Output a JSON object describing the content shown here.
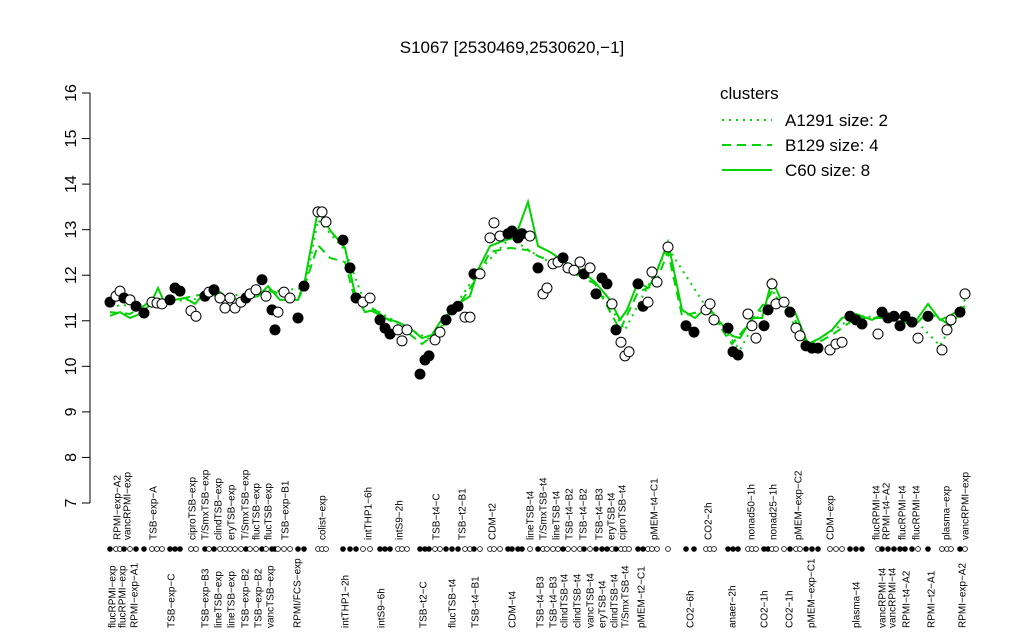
{
  "chart_data": {
    "type": "scatter",
    "title": "S1067 [2530469,2530620,−1]",
    "ylim": [
      7,
      16
    ],
    "yticks": [
      7,
      8,
      9,
      10,
      11,
      12,
      13,
      14,
      15,
      16
    ],
    "xlim": [
      0,
      174
    ],
    "xticks_top": [
      {
        "value": 3.4,
        "label": "RPMI−exp−A2"
      },
      {
        "value": 5.4,
        "label": "vancRPMI−exp"
      },
      {
        "value": 10.6,
        "label": "TSB−exp−A"
      },
      {
        "value": 18.4,
        "label": "ciproTSB−exp"
      },
      {
        "value": 21,
        "label": "T/SmxTSB−exp"
      },
      {
        "value": 23.6,
        "label": "clindTSB−exp"
      },
      {
        "value": 26.2,
        "label": "eryTSB−exp"
      },
      {
        "value": 29,
        "label": "T/SmxTSB−exp"
      },
      {
        "value": 31.2,
        "label": "flucTSB−exp"
      },
      {
        "value": 33.6,
        "label": "flucTSB−exp"
      },
      {
        "value": 37,
        "label": "TSB−exp−B1"
      },
      {
        "value": 44.4,
        "label": "colist−exp"
      },
      {
        "value": 53.6,
        "label": "intTHP1−6h"
      },
      {
        "value": 59.8,
        "label": "intS9−2h"
      },
      {
        "value": 67.2,
        "label": "TSB−t4−C"
      },
      {
        "value": 72.4,
        "label": "TSB−t2−B1"
      },
      {
        "value": 78.4,
        "label": "CDM−t2"
      },
      {
        "value": 86,
        "label": "lineTSB−t4"
      },
      {
        "value": 88.6,
        "label": "T/SmxTSB−t4"
      },
      {
        "value": 91.2,
        "label": "lineTSB−t4"
      },
      {
        "value": 93.8,
        "label": "TSB−t4−B2"
      },
      {
        "value": 96.6,
        "label": "TSB−t4−B2"
      },
      {
        "value": 99.8,
        "label": "TSB−t4−B3"
      },
      {
        "value": 102.2,
        "label": "eryTSB−t4"
      },
      {
        "value": 104.4,
        "label": "ciproTSB−t4"
      },
      {
        "value": 110.8,
        "label": "pMEM−t4−C1"
      },
      {
        "value": 121.6,
        "label": "CO2−2h"
      },
      {
        "value": 130.2,
        "label": "nonad50−1h"
      },
      {
        "value": 134.6,
        "label": "nonad25−1h"
      },
      {
        "value": 139.6,
        "label": "pMEM−exp−C2"
      },
      {
        "value": 146,
        "label": "CDM−exp"
      },
      {
        "value": 155.2,
        "label": "flucRPMI−t4"
      },
      {
        "value": 157.2,
        "label": "RPMI−t4−A2"
      },
      {
        "value": 160.4,
        "label": "flucRPMI−t4"
      },
      {
        "value": 163.2,
        "label": "flucRPMI−t4"
      },
      {
        "value": 169.2,
        "label": "plasma−exp"
      },
      {
        "value": 173,
        "label": "vancRPMI−exp"
      }
    ],
    "xticks_bottom": [
      {
        "value": 2.4,
        "label": "flucRPMI−exp"
      },
      {
        "value": 4.4,
        "label": "flucRPMI−exp"
      },
      {
        "value": 6.8,
        "label": "RPMI−exp−A1"
      },
      {
        "value": 14.2,
        "label": "TSB−exp−C"
      },
      {
        "value": 21,
        "label": "TSB−exp−B3"
      },
      {
        "value": 23.6,
        "label": "lineTSB−exp"
      },
      {
        "value": 26.2,
        "label": "lineTSB−exp"
      },
      {
        "value": 29,
        "label": "TSB−exp−B2"
      },
      {
        "value": 31.6,
        "label": "TSB−exp−B2"
      },
      {
        "value": 34,
        "label": "vancTSB−exp"
      },
      {
        "value": 39.4,
        "label": "RPMI/FCS−exp"
      },
      {
        "value": 49,
        "label": "intTHP1−2h"
      },
      {
        "value": 56.2,
        "label": "intS9−6h"
      },
      {
        "value": 64.6,
        "label": "TSB−t2−C"
      },
      {
        "value": 70.4,
        "label": "flucTSB−t4"
      },
      {
        "value": 75,
        "label": "TSB−t4−B1"
      },
      {
        "value": 82.4,
        "label": "CDM−t4"
      },
      {
        "value": 88,
        "label": "TSB−t4−B3"
      },
      {
        "value": 90.6,
        "label": "TSB−t4−B3"
      },
      {
        "value": 92.8,
        "label": "clindTSB−t4"
      },
      {
        "value": 95.4,
        "label": "clindTSB−t4"
      },
      {
        "value": 98,
        "label": "vancTSB−t4"
      },
      {
        "value": 100.4,
        "label": "eryTSB−t4"
      },
      {
        "value": 102.8,
        "label": "clindTSB−t4"
      },
      {
        "value": 105,
        "label": "T/SmxTSB−t4"
      },
      {
        "value": 108.2,
        "label": "pMEM−t2−C1"
      },
      {
        "value": 118,
        "label": "CO2−6h"
      },
      {
        "value": 126.4,
        "label": "anaer−2h"
      },
      {
        "value": 132.8,
        "label": "CO2−1h"
      },
      {
        "value": 137.8,
        "label": "CO2−1h"
      },
      {
        "value": 142.2,
        "label": "pMEM−exp−C1"
      },
      {
        "value": 151.2,
        "label": "plasma−t4"
      },
      {
        "value": 156.4,
        "label": "vancRPMI−t4"
      },
      {
        "value": 158.4,
        "label": "vancRPMI−t4"
      },
      {
        "value": 161.2,
        "label": "RPMI−t4−A2"
      },
      {
        "value": 166.2,
        "label": "RPMI−t2−A1"
      },
      {
        "value": 172.4,
        "label": "RPMI−exp−A2"
      }
    ],
    "points": {
      "x": [
        2,
        3.2,
        4,
        4.8,
        6,
        7.2,
        8.8,
        10.4,
        11.4,
        12.4,
        14,
        15,
        16,
        18.2,
        19.2,
        21,
        21.8,
        22.8,
        24,
        25,
        26,
        27,
        28.2,
        29.2,
        30,
        31.2,
        32.4,
        33.2,
        34.4,
        35,
        35.6,
        36.8,
        38,
        39.6,
        40.8,
        43.6,
        44.4,
        45.2,
        48.6,
        50,
        51.2,
        52.6,
        54,
        56,
        57,
        58,
        59.6,
        60.4,
        61.4,
        64,
        65,
        65.8,
        67,
        68,
        69.2,
        70.4,
        71.6,
        73,
        74,
        74.8,
        76,
        78,
        78.8,
        80,
        81.6,
        82.4,
        83.6,
        84.4,
        86,
        87.6,
        88.6,
        89.4,
        90.6,
        91.6,
        92.6,
        93.6,
        94.8,
        96,
        96.8,
        98,
        99.2,
        100.4,
        101.4,
        102.4,
        103.2,
        104.2,
        105,
        105.8,
        107.6,
        108.6,
        109.6,
        110.4,
        111.4,
        113.6,
        117.2,
        118.8,
        121.2,
        122,
        122.8,
        125.6,
        126.6,
        127.6,
        129.6,
        130.4,
        131.2,
        132.8,
        133.6,
        134.4,
        135.2,
        136.8,
        138,
        139.2,
        140,
        141.2,
        142.4,
        143.6,
        146,
        147.2,
        148.4,
        150,
        151.2,
        152.4,
        155.6,
        156.4,
        157.6,
        158.8,
        160,
        161,
        162.4,
        163.6,
        165.6,
        168.4,
        169.4,
        170.2,
        172,
        173
      ],
      "values": [
        11.41,
        11.54,
        11.65,
        11.5,
        11.46,
        11.32,
        11.17,
        11.41,
        11.39,
        11.37,
        11.46,
        11.72,
        11.65,
        11.22,
        11.1,
        11.54,
        11.63,
        11.68,
        11.5,
        11.28,
        11.5,
        11.28,
        11.41,
        11.5,
        11.59,
        11.68,
        11.9,
        11.54,
        11.24,
        10.8,
        11.19,
        11.63,
        11.5,
        11.06,
        11.76,
        13.39,
        13.39,
        13.17,
        12.77,
        12.16,
        11.5,
        11.41,
        11.5,
        11.02,
        10.84,
        10.71,
        10.8,
        10.56,
        10.8,
        9.83,
        10.14,
        10.23,
        10.58,
        10.75,
        11.02,
        11.24,
        11.32,
        11.08,
        11.08,
        12.03,
        12.03,
        12.82,
        13.15,
        12.86,
        12.91,
        12.97,
        12.82,
        12.91,
        12.86,
        12.16,
        11.59,
        11.72,
        12.25,
        12.29,
        12.38,
        12.16,
        12.11,
        12.29,
        12.03,
        12.16,
        11.59,
        11.94,
        11.81,
        11.37,
        10.8,
        10.53,
        10.23,
        10.32,
        11.81,
        11.32,
        11.41,
        12.07,
        11.85,
        12.62,
        10.89,
        10.75,
        11.24,
        11.37,
        11.02,
        10.84,
        10.32,
        10.25,
        11.15,
        10.89,
        10.62,
        10.89,
        11.24,
        11.81,
        11.37,
        11.41,
        11.19,
        10.84,
        10.67,
        10.45,
        10.4,
        10.4,
        10.36,
        10.49,
        10.53,
        11.1,
        11.02,
        10.93,
        10.71,
        11.19,
        11.06,
        11.1,
        10.89,
        11.1,
        10.97,
        10.62,
        11.1,
        10.36,
        10.8,
        11.02,
        11.19,
        11.59
      ],
      "filled": [
        true,
        false,
        false,
        true,
        false,
        true,
        true,
        false,
        false,
        false,
        true,
        true,
        true,
        false,
        false,
        true,
        false,
        true,
        false,
        false,
        false,
        false,
        false,
        true,
        false,
        false,
        true,
        false,
        true,
        true,
        false,
        false,
        false,
        true,
        true,
        false,
        false,
        false,
        true,
        true,
        true,
        false,
        false,
        true,
        true,
        true,
        false,
        false,
        false,
        true,
        true,
        true,
        false,
        false,
        true,
        true,
        true,
        false,
        false,
        true,
        false,
        false,
        false,
        false,
        true,
        true,
        true,
        true,
        false,
        true,
        false,
        false,
        false,
        false,
        true,
        false,
        false,
        false,
        true,
        false,
        true,
        true,
        true,
        false,
        true,
        false,
        false,
        false,
        true,
        true,
        false,
        false,
        false,
        false,
        true,
        true,
        false,
        false,
        false,
        true,
        true,
        true,
        false,
        false,
        false,
        true,
        true,
        false,
        false,
        false,
        true,
        false,
        false,
        true,
        true,
        true,
        false,
        false,
        false,
        true,
        true,
        true,
        false,
        true,
        true,
        true,
        true,
        true,
        true,
        false,
        true,
        false,
        false,
        false,
        true,
        false
      ]
    },
    "legend_title": "clusters",
    "legend": "topright",
    "series": [
      {
        "name": "A1291 size: 2",
        "color": "#00d400",
        "dash": "dotted",
        "x": [
          2,
          10,
          21,
          33.6,
          41,
          43.6,
          49,
          53,
          62,
          66.4,
          75.6,
          82,
          87.6,
          99,
          105,
          113.6,
          121.6,
          128,
          134.4,
          141.6,
          151.2,
          163,
          168,
          173
        ],
        "values": [
          11.32,
          11.37,
          11.5,
          11.63,
          11.72,
          13.21,
          12.55,
          11.37,
          10.8,
          10.58,
          12.07,
          12.82,
          12.42,
          11.81,
          10.8,
          12.6,
          11.24,
          10.36,
          11.68,
          10.45,
          11.11,
          11.02,
          10.45,
          11.46
        ]
      },
      {
        "name": "B129 size: 4",
        "color": "#00d400",
        "dash": "dashed",
        "x": [
          2,
          6,
          10,
          15,
          21,
          28,
          33.6,
          39.6,
          41,
          43.6,
          46,
          49,
          51,
          54,
          59.6,
          64.4,
          68,
          71.6,
          75.6,
          78,
          82,
          85.6,
          87.6,
          93,
          99,
          104,
          107.6,
          111,
          113.6,
          116.4,
          121.6,
          126.4,
          130.4,
          134.4,
          139,
          141.6,
          146.4,
          151.2,
          156.8,
          163,
          165.6,
          170,
          173
        ],
        "values": [
          11.19,
          11.15,
          11.41,
          11.46,
          11.59,
          11.46,
          11.68,
          11.46,
          11.79,
          12.66,
          12.38,
          12.29,
          11.46,
          11.24,
          10.91,
          10.49,
          10.8,
          11.32,
          11.98,
          12.51,
          12.6,
          12.55,
          12.42,
          12.2,
          11.81,
          10.8,
          11.63,
          11.79,
          12.51,
          11.11,
          11.24,
          10.49,
          11.02,
          11.63,
          11.02,
          10.4,
          10.69,
          11.06,
          11.06,
          10.91,
          11.19,
          10.91,
          11.28
        ]
      },
      {
        "name": "C60 size: 8",
        "color": "#00d400",
        "dash": "solid",
        "x": [
          2,
          4,
          6,
          8,
          10,
          11.6,
          13,
          15,
          17,
          19,
          21,
          23,
          25,
          28,
          31.6,
          33.6,
          36,
          39.6,
          41,
          43.6,
          46,
          49,
          51,
          53,
          55,
          57,
          59.6,
          62,
          64.4,
          66.4,
          68,
          70,
          71.6,
          74,
          75.6,
          78,
          81,
          83,
          85.6,
          87.6,
          90,
          93,
          96,
          99,
          102,
          104,
          105.4,
          107.6,
          109.6,
          111,
          113.6,
          116.4,
          119,
          121.6,
          123.6,
          126.4,
          128,
          130.4,
          132.4,
          134.4,
          136.4,
          139,
          141.6,
          144,
          146.4,
          148.4,
          151.2,
          154.4,
          156.8,
          160,
          163,
          165.6,
          168,
          170,
          173
        ],
        "values": [
          11.11,
          11.19,
          11.06,
          11.15,
          11.35,
          11.72,
          11.37,
          11.46,
          11.5,
          11.37,
          11.63,
          11.72,
          11.54,
          11.46,
          11.54,
          11.76,
          11.46,
          11.46,
          11.9,
          13.43,
          12.99,
          12.6,
          11.59,
          11.19,
          11.24,
          11.06,
          10.97,
          10.84,
          10.62,
          10.69,
          10.97,
          11.19,
          11.37,
          11.54,
          12.12,
          12.64,
          12.77,
          12.82,
          13.61,
          12.64,
          12.51,
          12.29,
          12.12,
          11.85,
          11.46,
          11.02,
          11.24,
          11.85,
          11.72,
          11.98,
          12.73,
          11.24,
          11.06,
          11.32,
          11.02,
          10.67,
          10.62,
          11.06,
          11.06,
          11.9,
          11.41,
          11.19,
          10.49,
          10.62,
          10.8,
          11.06,
          11.15,
          11.02,
          11.15,
          11.06,
          10.97,
          11.37,
          11.02,
          11.11,
          11.32
        ]
      }
    ]
  }
}
